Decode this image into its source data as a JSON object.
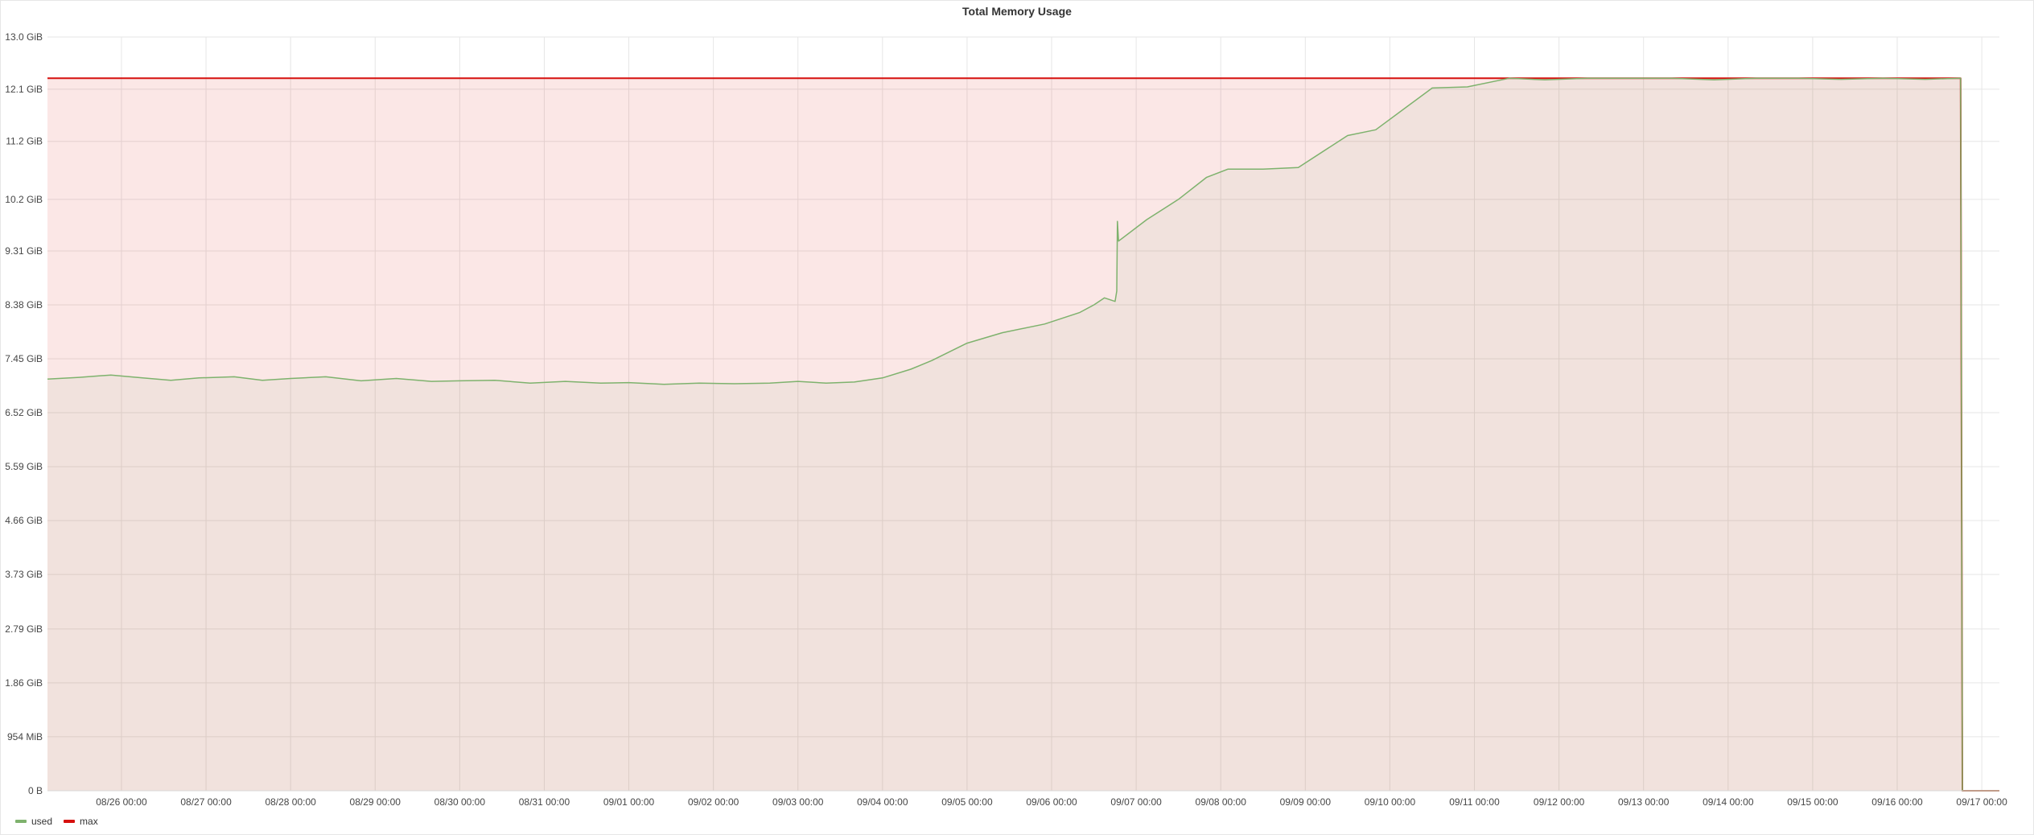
{
  "panel": {
    "title": "Total Memory Usage"
  },
  "legend": [
    {
      "name": "used",
      "color": "#7eb26d"
    },
    {
      "name": "max",
      "color": "#d6100e"
    }
  ],
  "chart_data": {
    "type": "area",
    "title": "Total Memory Usage",
    "grid": true,
    "legend_position": "bottom-left",
    "y_unit": "GiB",
    "ylim": [
      0,
      13.0
    ],
    "y_ticks": [
      {
        "value": 0,
        "label": "0 B"
      },
      {
        "value": 0.9313,
        "label": "954 MiB"
      },
      {
        "value": 1.86,
        "label": "1.86 GiB"
      },
      {
        "value": 2.79,
        "label": "2.79 GiB"
      },
      {
        "value": 3.73,
        "label": "3.73 GiB"
      },
      {
        "value": 4.66,
        "label": "4.66 GiB"
      },
      {
        "value": 5.59,
        "label": "5.59 GiB"
      },
      {
        "value": 6.52,
        "label": "6.52 GiB"
      },
      {
        "value": 7.45,
        "label": "7.45 GiB"
      },
      {
        "value": 8.38,
        "label": "8.38 GiB"
      },
      {
        "value": 9.31,
        "label": "9.31 GiB"
      },
      {
        "value": 10.2,
        "label": "10.2 GiB"
      },
      {
        "value": 11.2,
        "label": "11.2 GiB"
      },
      {
        "value": 12.1,
        "label": "12.1 GiB"
      },
      {
        "value": 13.0,
        "label": "13.0 GiB"
      }
    ],
    "xlim": [
      "08/25 03:00",
      "09/17 05:00"
    ],
    "x_ticks": [
      "08/26 00:00",
      "08/27 00:00",
      "08/28 00:00",
      "08/29 00:00",
      "08/30 00:00",
      "08/31 00:00",
      "09/01 00:00",
      "09/02 00:00",
      "09/03 00:00",
      "09/04 00:00",
      "09/05 00:00",
      "09/06 00:00",
      "09/07 00:00",
      "09/08 00:00",
      "09/09 00:00",
      "09/10 00:00",
      "09/11 00:00",
      "09/12 00:00",
      "09/13 00:00",
      "09/14 00:00",
      "09/15 00:00",
      "09/16 00:00",
      "09/17 00:00"
    ],
    "series": [
      {
        "name": "used",
        "color": "#7eb26d",
        "fill": true,
        "points": [
          [
            "08/25 03:00",
            7.1
          ],
          [
            "08/25 12:00",
            7.13
          ],
          [
            "08/25 21:00",
            7.17
          ],
          [
            "08/26 06:00",
            7.12
          ],
          [
            "08/26 14:00",
            7.08
          ],
          [
            "08/26 22:00",
            7.12
          ],
          [
            "08/27 08:00",
            7.14
          ],
          [
            "08/27 16:00",
            7.08
          ],
          [
            "08/28 00:00",
            7.11
          ],
          [
            "08/28 10:00",
            7.14
          ],
          [
            "08/28 20:00",
            7.07
          ],
          [
            "08/29 06:00",
            7.11
          ],
          [
            "08/29 16:00",
            7.06
          ],
          [
            "08/30 00:00",
            7.07
          ],
          [
            "08/30 10:00",
            7.08
          ],
          [
            "08/30 20:00",
            7.03
          ],
          [
            "08/31 06:00",
            7.06
          ],
          [
            "08/31 16:00",
            7.03
          ],
          [
            "09/01 00:00",
            7.04
          ],
          [
            "09/01 10:00",
            7.01
          ],
          [
            "09/01 20:00",
            7.03
          ],
          [
            "09/02 06:00",
            7.02
          ],
          [
            "09/02 16:00",
            7.03
          ],
          [
            "09/03 00:00",
            7.06
          ],
          [
            "09/03 08:00",
            7.03
          ],
          [
            "09/03 16:00",
            7.05
          ],
          [
            "09/04 00:00",
            7.12
          ],
          [
            "09/04 08:00",
            7.27
          ],
          [
            "09/04 14:00",
            7.42
          ],
          [
            "09/05 00:00",
            7.72
          ],
          [
            "09/05 10:00",
            7.9
          ],
          [
            "09/05 22:00",
            8.05
          ],
          [
            "09/06 08:00",
            8.25
          ],
          [
            "09/06 18:00",
            8.44
          ],
          [
            "09/06 12:00",
            8.38
          ],
          [
            "09/06 15:00",
            8.5
          ],
          [
            "09/06 18:30",
            8.62
          ],
          [
            "09/06 18:40",
            9.82
          ],
          [
            "09/06 19:00",
            9.48
          ],
          [
            "09/07 03:00",
            9.85
          ],
          [
            "09/07 12:00",
            10.2
          ],
          [
            "09/07 20:00",
            10.58
          ],
          [
            "09/08 02:00",
            10.72
          ],
          [
            "09/08 12:00",
            10.72
          ],
          [
            "09/08 22:00",
            10.75
          ],
          [
            "09/09 12:00",
            11.3
          ],
          [
            "09/09 20:00",
            11.4
          ],
          [
            "09/10 06:00",
            11.85
          ],
          [
            "09/10 12:00",
            12.12
          ],
          [
            "09/10 22:00",
            12.14
          ],
          [
            "09/11 10:00",
            12.29
          ],
          [
            "09/11 20:00",
            12.26
          ],
          [
            "09/12 08:00",
            12.29
          ],
          [
            "09/12 20:00",
            12.29
          ],
          [
            "09/13 08:00",
            12.29
          ],
          [
            "09/13 20:00",
            12.26
          ],
          [
            "09/14 08:00",
            12.29
          ],
          [
            "09/14 20:00",
            12.29
          ],
          [
            "09/15 08:00",
            12.27
          ],
          [
            "09/15 20:00",
            12.29
          ],
          [
            "09/16 08:00",
            12.27
          ],
          [
            "09/16 18:00",
            12.29
          ],
          [
            "09/16 18:30",
            0.0
          ],
          [
            "09/17 05:00",
            0.0
          ]
        ]
      },
      {
        "name": "max",
        "color": "#d6100e",
        "fill": true,
        "points": [
          [
            "08/25 03:00",
            12.29
          ],
          [
            "09/16 18:00",
            12.29
          ],
          [
            "09/16 18:30",
            0.0
          ],
          [
            "09/17 05:00",
            0.0
          ]
        ]
      }
    ]
  }
}
